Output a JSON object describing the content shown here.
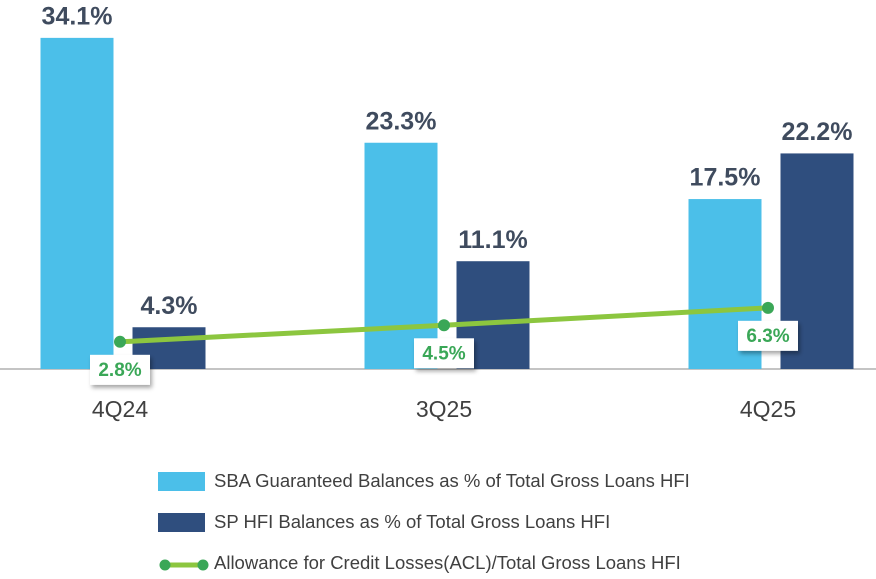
{
  "chart_data": {
    "type": "bar",
    "categories": [
      "4Q24",
      "3Q25",
      "4Q25"
    ],
    "series": [
      {
        "name": "SBA Guaranteed Balances as % of Total Gross Loans HFI",
        "type": "bar",
        "color": "#4bbfe9",
        "values": [
          34.1,
          23.3,
          17.5
        ],
        "value_labels": [
          "34.1%",
          "23.3%",
          "17.5%"
        ]
      },
      {
        "name": "SP HFI Balances as % of Total Gross Loans HFI",
        "type": "bar",
        "color": "#2f4e7e",
        "values": [
          4.3,
          11.1,
          22.2
        ],
        "value_labels": [
          "4.3%",
          "11.1%",
          "22.2%"
        ]
      },
      {
        "name": "Allowance for Credit Losses(ACL)/Total Gross Loans HFI",
        "type": "line",
        "color": "#8cc63f",
        "marker_color": "#3aa757",
        "values": [
          2.8,
          4.5,
          6.3
        ],
        "value_labels": [
          "2.8%",
          "4.5%",
          "6.3%"
        ]
      }
    ],
    "ylim": [
      0,
      38
    ],
    "legend": "bottom"
  }
}
